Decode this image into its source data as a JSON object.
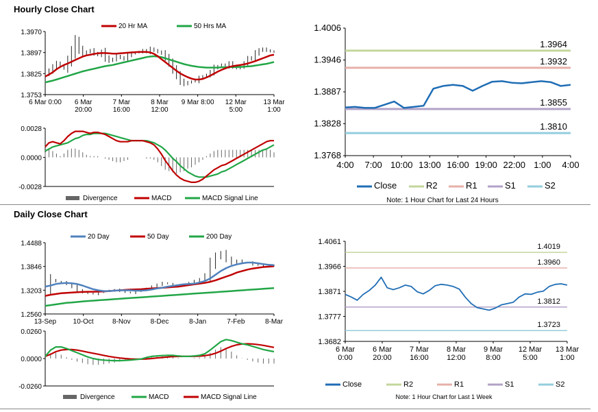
{
  "sections": {
    "hourly_title": "Hourly Close Chart",
    "daily_title": "Daily Close Chart"
  },
  "colors": {
    "ma20": "#c00000",
    "ma50": "#21a646",
    "ma200": "#21a646",
    "ma20_daily": "#4f81bd",
    "ma50_daily": "#c00000",
    "close": "#1f6db5",
    "r2": "#c3d69b",
    "r1": "#e6b0aa",
    "s1": "#b2a2c7",
    "s2": "#93cddd",
    "divergence": "#666666"
  },
  "chart_data": [
    {
      "id": "hourly-price",
      "type": "line",
      "legend": [
        "20 Hr MA",
        "50 Hrs MA"
      ],
      "ylim": [
        1.3753,
        1.397
      ],
      "yticks": [
        "1.3970",
        "1.3897",
        "1.3825",
        "1.3753"
      ],
      "xticks": [
        "6 Mar 0:00",
        "6 Mar\n20:00",
        "7 Mar\n16:00",
        "8 Mar\n12:00",
        "9 Mar 8:00",
        "12 Mar\n5:00",
        "13 Mar\n1:00"
      ],
      "price": [
        1.3825,
        1.3835,
        1.3848,
        1.386,
        1.3852,
        1.3845,
        1.387,
        1.39,
        1.3935,
        1.391,
        1.3895,
        1.39,
        1.3905,
        1.3895,
        1.389,
        1.39,
        1.388,
        1.387,
        1.3875,
        1.3885,
        1.388,
        1.3875,
        1.3888,
        1.3895,
        1.3898,
        1.39,
        1.3905,
        1.39,
        1.391,
        1.3905,
        1.39,
        1.3895,
        1.388,
        1.3862,
        1.384,
        1.382,
        1.38,
        1.379,
        1.3795,
        1.3798,
        1.38,
        1.381,
        1.3815,
        1.382,
        1.383,
        1.3845,
        1.385,
        1.3855,
        1.385,
        1.386,
        1.385,
        1.3845,
        1.385,
        1.386,
        1.3875,
        1.388,
        1.3895,
        1.3905,
        1.391,
        1.3905,
        1.3902,
        1.39
      ],
      "ma20": [
        1.3815,
        1.3822,
        1.383,
        1.384,
        1.3848,
        1.3855,
        1.386,
        1.3866,
        1.3872,
        1.3878,
        1.3884,
        1.3888,
        1.389,
        1.3893,
        1.3895,
        1.3896,
        1.3896,
        1.3895,
        1.3894,
        1.3894,
        1.3895,
        1.3896,
        1.3897,
        1.3898,
        1.3899,
        1.39,
        1.39,
        1.39,
        1.3898,
        1.3893,
        1.3885,
        1.3875,
        1.3865,
        1.3855,
        1.3845,
        1.3835,
        1.3826,
        1.3819,
        1.3813,
        1.3808,
        1.3805,
        1.3805,
        1.3807,
        1.3812,
        1.3818,
        1.3825,
        1.3832,
        1.3838,
        1.3843,
        1.3848,
        1.3851,
        1.3853,
        1.3855,
        1.3857,
        1.386,
        1.3864,
        1.3868,
        1.3873,
        1.3878,
        1.3883,
        1.3888,
        1.389
      ],
      "ma50": [
        1.3795,
        1.3798,
        1.3801,
        1.3805,
        1.3809,
        1.3813,
        1.3817,
        1.3821,
        1.3825,
        1.3829,
        1.3833,
        1.3836,
        1.3839,
        1.3842,
        1.3845,
        1.3848,
        1.3851,
        1.3853,
        1.3855,
        1.3858,
        1.3861,
        1.3864,
        1.3867,
        1.387,
        1.3873,
        1.3876,
        1.3879,
        1.3882,
        1.3884,
        1.3885,
        1.3884,
        1.3882,
        1.3878,
        1.3874,
        1.387,
        1.3866,
        1.3862,
        1.3858,
        1.3855,
        1.3852,
        1.385,
        1.3848,
        1.3847,
        1.3846,
        1.3846,
        1.3846,
        1.3846,
        1.3847,
        1.3847,
        1.3848,
        1.3848,
        1.3848,
        1.3848,
        1.3849,
        1.385,
        1.3851,
        1.3853,
        1.3855,
        1.3857,
        1.3859,
        1.3862,
        1.3865
      ]
    },
    {
      "id": "hourly-macd",
      "type": "line",
      "legend": [
        "Divergence",
        "MACD",
        "MACD Signal Line"
      ],
      "ylim": [
        -0.0028,
        0.0028
      ],
      "yticks": [
        "0.0028",
        "0.0000",
        "-0.0028"
      ],
      "macd": [
        0.001,
        0.0014,
        0.0015,
        0.0014,
        0.0013,
        0.0016,
        0.002,
        0.0023,
        0.0025,
        0.0025,
        0.0025,
        0.0024,
        0.0023,
        0.0024,
        0.0024,
        0.0023,
        0.0022,
        0.002,
        0.0018,
        0.0016,
        0.0015,
        0.0015,
        0.0015,
        0.0016,
        0.0016,
        0.0016,
        0.0016,
        0.0015,
        0.0014,
        0.0012,
        0.0008,
        0.0003,
        -0.0003,
        -0.0008,
        -0.0013,
        -0.0017,
        -0.002,
        -0.0022,
        -0.0023,
        -0.0024,
        -0.0024,
        -0.0023,
        -0.0021,
        -0.0018,
        -0.0015,
        -0.0012,
        -0.001,
        -0.0008,
        -0.0007,
        -0.0005,
        -0.0003,
        -0.0001,
        0.0001,
        0.0003,
        0.0005,
        0.0007,
        0.0009,
        0.0011,
        0.0013,
        0.0015,
        0.0016,
        0.0016
      ],
      "signal": [
        0.0006,
        0.0008,
        0.001,
        0.0011,
        0.0012,
        0.0013,
        0.0014,
        0.0016,
        0.0018,
        0.0019,
        0.0021,
        0.0022,
        0.0022,
        0.0023,
        0.0023,
        0.0023,
        0.0023,
        0.0022,
        0.0021,
        0.002,
        0.0019,
        0.0018,
        0.0017,
        0.0016,
        0.0016,
        0.0016,
        0.0016,
        0.0016,
        0.0015,
        0.0014,
        0.0012,
        0.001,
        0.0007,
        0.0003,
        -0.0001,
        -0.0004,
        -0.0008,
        -0.0011,
        -0.0014,
        -0.0016,
        -0.0018,
        -0.0019,
        -0.0019,
        -0.0019,
        -0.0018,
        -0.0017,
        -0.0016,
        -0.0014,
        -0.0013,
        -0.0011,
        -0.0009,
        -0.0007,
        -0.0005,
        -0.0003,
        -0.0001,
        0.0001,
        0.0003,
        0.0005,
        0.0007,
        0.0008,
        0.001,
        0.0012
      ]
    },
    {
      "id": "hourly-levels",
      "type": "line",
      "note": "Note: 1 Hour Chart for Last 24 Hours",
      "legend": [
        "Close",
        "R2",
        "R1",
        "S1",
        "S2"
      ],
      "ylim": [
        1.3768,
        1.4006
      ],
      "yticks": [
        "1.4006",
        "1.3946",
        "1.3887",
        "1.3828",
        "1.3768"
      ],
      "xticks": [
        "4:00",
        "7:00",
        "10:00",
        "13:00",
        "16:00",
        "19:00",
        "22:00",
        "1:00",
        "4:00"
      ],
      "close": [
        1.3858,
        1.3859,
        1.3857,
        1.3857,
        1.3863,
        1.3869,
        1.3857,
        1.3859,
        1.3861,
        1.3893,
        1.3898,
        1.39,
        1.3898,
        1.3889,
        1.3898,
        1.3906,
        1.3907,
        1.3904,
        1.3903,
        1.3905,
        1.3907,
        1.3905,
        1.3898,
        1.39
      ],
      "levels": {
        "r2": 1.3964,
        "r1": 1.3932,
        "s1": 1.3855,
        "s2": 1.381
      },
      "level_labels": {
        "r2": "1.3964",
        "r1": "1.3932",
        "s1": "1.3855",
        "s2": "1.3810"
      }
    },
    {
      "id": "daily-price",
      "type": "line",
      "legend": [
        "20 Day",
        "50 Day",
        "200 Day"
      ],
      "ylim": [
        1.256,
        1.4488
      ],
      "yticks": [
        "1.4488",
        "1.3846",
        "1.3203",
        "1.2560"
      ],
      "xticks": [
        "13-Sep",
        "10-Oct",
        "8-Nov",
        "8-Dec",
        "8-Jan",
        "7-Feb",
        "8-Mar"
      ],
      "price": [
        1.322,
        1.348,
        1.344,
        1.342,
        1.337,
        1.33,
        1.32,
        1.315,
        1.312,
        1.31,
        1.315,
        1.318,
        1.32,
        1.322,
        1.318,
        1.315,
        1.313,
        1.318,
        1.322,
        1.325,
        1.33,
        1.335,
        1.34,
        1.338,
        1.335,
        1.334,
        1.336,
        1.34,
        1.345,
        1.35,
        1.36,
        1.39,
        1.41,
        1.42,
        1.405,
        1.395,
        1.4,
        1.395,
        1.395,
        1.39,
        1.388,
        1.385,
        1.386,
        1.388
      ],
      "ma20": [
        1.33,
        1.333,
        1.337,
        1.339,
        1.34,
        1.339,
        1.337,
        1.333,
        1.328,
        1.323,
        1.32,
        1.318,
        1.318,
        1.319,
        1.32,
        1.32,
        1.32,
        1.319,
        1.319,
        1.32,
        1.322,
        1.325,
        1.327,
        1.33,
        1.332,
        1.334,
        1.336,
        1.337,
        1.338,
        1.341,
        1.345,
        1.352,
        1.362,
        1.372,
        1.38,
        1.386,
        1.39,
        1.393,
        1.395,
        1.395,
        1.393,
        1.391,
        1.389,
        1.388
      ],
      "ma50": [
        1.305,
        1.308,
        1.31,
        1.312,
        1.313,
        1.314,
        1.315,
        1.3155,
        1.316,
        1.316,
        1.3165,
        1.317,
        1.318,
        1.319,
        1.32,
        1.321,
        1.322,
        1.3225,
        1.323,
        1.324,
        1.325,
        1.326,
        1.327,
        1.328,
        1.329,
        1.33,
        1.332,
        1.334,
        1.336,
        1.338,
        1.34,
        1.343,
        1.347,
        1.352,
        1.357,
        1.362,
        1.368,
        1.372,
        1.376,
        1.379,
        1.381,
        1.383,
        1.384,
        1.385
      ],
      "ma200": [
        1.278,
        1.28,
        1.282,
        1.284,
        1.286,
        1.287,
        1.2885,
        1.29,
        1.291,
        1.292,
        1.293,
        1.294,
        1.295,
        1.296,
        1.297,
        1.298,
        1.299,
        1.3,
        1.301,
        1.302,
        1.303,
        1.304,
        1.305,
        1.306,
        1.307,
        1.308,
        1.309,
        1.31,
        1.311,
        1.312,
        1.313,
        1.314,
        1.315,
        1.316,
        1.317,
        1.318,
        1.319,
        1.32,
        1.321,
        1.322,
        1.323,
        1.324,
        1.325,
        1.326
      ]
    },
    {
      "id": "daily-macd",
      "type": "line",
      "legend": [
        "Divergence",
        "MACD",
        "MACD Signal Line"
      ],
      "ylim": [
        -0.026,
        0.026
      ],
      "yticks": [
        "0.0260",
        "0.0000",
        "-0.0260"
      ],
      "macd": [
        0.002,
        0.008,
        0.011,
        0.011,
        0.0095,
        0.0075,
        0.0055,
        0.0035,
        0.0015,
        0.0,
        -0.001,
        -0.0015,
        -0.0018,
        -0.002,
        -0.002,
        -0.0018,
        -0.0015,
        -0.001,
        -0.0005,
        0.001,
        0.002,
        0.0025,
        0.0028,
        0.003,
        0.003,
        0.0025,
        0.002,
        0.002,
        0.0025,
        0.003,
        0.0045,
        0.008,
        0.012,
        0.016,
        0.018,
        0.017,
        0.0155,
        0.014,
        0.013,
        0.0115,
        0.01,
        0.0085,
        0.0075,
        0.0065
      ],
      "signal": [
        0.002,
        0.004,
        0.0065,
        0.008,
        0.0085,
        0.0085,
        0.008,
        0.007,
        0.006,
        0.005,
        0.004,
        0.003,
        0.002,
        0.0012,
        0.0005,
        0.0,
        -0.0004,
        -0.0006,
        -0.0006,
        -0.0004,
        0.0,
        0.0005,
        0.001,
        0.0014,
        0.0018,
        0.002,
        0.002,
        0.002,
        0.0021,
        0.0023,
        0.0027,
        0.0035,
        0.005,
        0.007,
        0.0095,
        0.0115,
        0.013,
        0.0138,
        0.014,
        0.0138,
        0.0132,
        0.0125,
        0.0115,
        0.0105
      ]
    },
    {
      "id": "daily-levels",
      "type": "line",
      "note": "Note: 1 Hour Chart for Last 1 Week",
      "legend": [
        "Close",
        "R2",
        "R1",
        "S1",
        "S2"
      ],
      "ylim": [
        1.3682,
        1.4061
      ],
      "yticks": [
        "1.4061",
        "1.3966",
        "1.3871",
        "1.3777",
        "1.3682"
      ],
      "xticks": [
        "6 Mar\n0:00",
        "6 Mar\n20:00",
        "7 Mar\n16:00",
        "8 Mar\n12:00",
        "9 Mar\n8:00",
        "12 Mar\n5:00",
        "13 Mar\n1:00"
      ],
      "close": [
        1.386,
        1.385,
        1.3838,
        1.386,
        1.3875,
        1.3895,
        1.3925,
        1.3885,
        1.3878,
        1.3885,
        1.3895,
        1.389,
        1.387,
        1.3862,
        1.3875,
        1.3893,
        1.3898,
        1.3895,
        1.389,
        1.388,
        1.385,
        1.3825,
        1.381,
        1.3805,
        1.38,
        1.3808,
        1.382,
        1.3825,
        1.383,
        1.385,
        1.3862,
        1.386,
        1.3868,
        1.3872,
        1.389,
        1.3898,
        1.39,
        1.3895
      ],
      "levels": {
        "r2": 1.4019,
        "r1": 1.396,
        "s1": 1.3812,
        "s2": 1.3723
      },
      "level_labels": {
        "r2": "1.4019",
        "r1": "1.3960",
        "s1": "1.3812",
        "s2": "1.3723"
      }
    }
  ]
}
